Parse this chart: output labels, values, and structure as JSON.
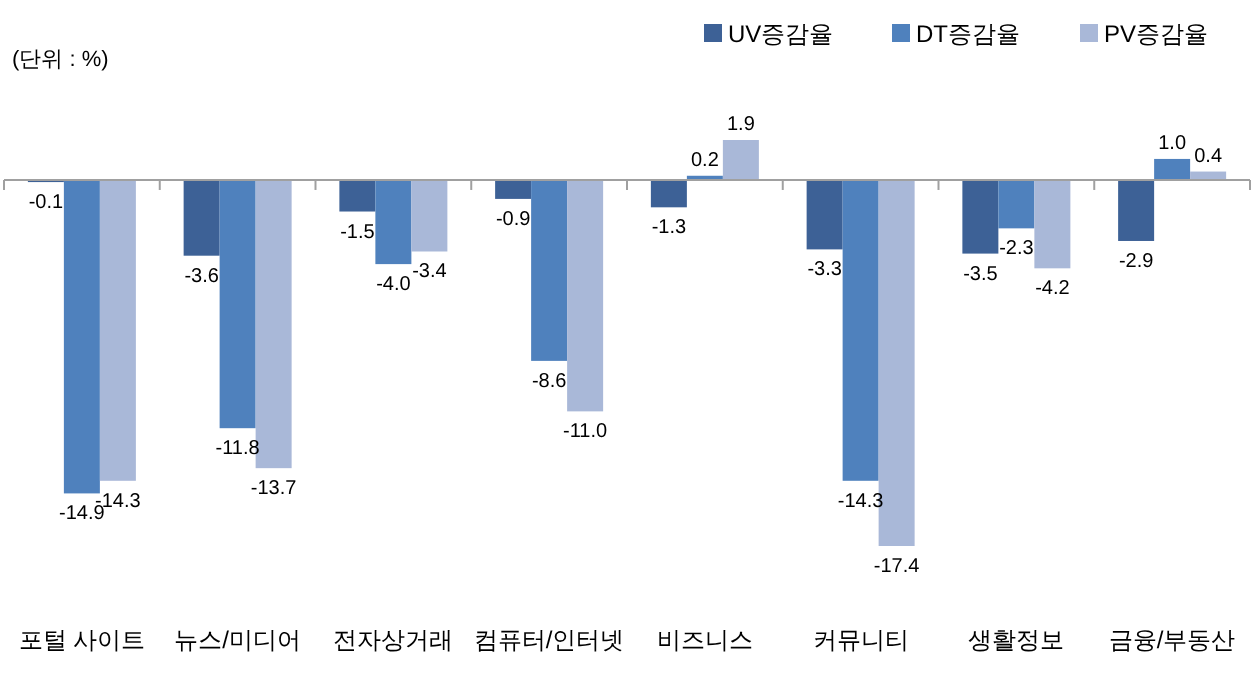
{
  "chart_data": {
    "type": "bar",
    "categories": [
      "포털 사이트",
      "뉴스/미디어",
      "전자상거래",
      "컴퓨터/인터넷",
      "비즈니스",
      "커뮤니티",
      "생활정보",
      "금융/부동산"
    ],
    "series": [
      {
        "name": "UV증감율",
        "color": "#3d6196",
        "values": [
          -0.1,
          -3.6,
          -1.5,
          -0.9,
          -1.3,
          -3.3,
          -3.5,
          -2.9
        ],
        "value_labels": [
          "-0.1",
          "-3.6",
          "-1.5",
          "-0.9",
          "-1.3",
          "-3.3",
          "-3.5",
          "-2.9"
        ]
      },
      {
        "name": "DT증감율",
        "color": "#4f81bd",
        "values": [
          -14.9,
          -11.8,
          -4.0,
          -8.6,
          0.2,
          -14.3,
          -2.3,
          1.0
        ],
        "value_labels": [
          "-14.9",
          "-11.8",
          "-4.0",
          "-8.6",
          "0.2",
          "-14.3",
          "-2.3",
          "1.0"
        ]
      },
      {
        "name": "PV증감율",
        "color": "#a9b8d8",
        "values": [
          -14.3,
          -13.7,
          -3.4,
          -11.0,
          1.9,
          -17.4,
          -4.2,
          0.4
        ],
        "value_labels": [
          "-14.3",
          "-13.7",
          "-3.4",
          "-11.0",
          "1.9",
          "-17.4",
          "-4.2",
          "0.4"
        ]
      }
    ],
    "legend": "top right",
    "annotations": [
      "(단위 : %)"
    ]
  }
}
